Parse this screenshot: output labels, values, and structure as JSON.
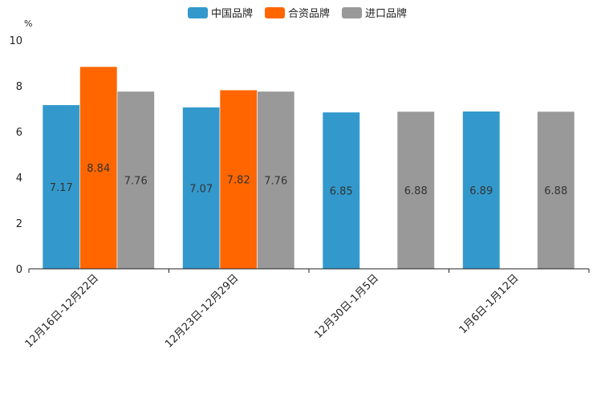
{
  "chart_data": {
    "type": "bar",
    "title": "",
    "ylabel": "%",
    "xlabel": "",
    "ylim": [
      0,
      10
    ],
    "yticks": [
      0,
      2,
      4,
      6,
      8,
      10
    ],
    "categories": [
      "12月16日-12月22日",
      "12月23日-12月29日",
      "12月30日-1月5日",
      "1月6日-1月12日"
    ],
    "series": [
      {
        "name": "中国品牌",
        "color": "#3399cc",
        "values": [
          7.17,
          7.07,
          6.85,
          6.89
        ]
      },
      {
        "name": "合资品牌",
        "color": "#ff6600",
        "values": [
          8.84,
          7.82,
          null,
          null
        ]
      },
      {
        "name": "进口品牌",
        "color": "#999999",
        "values": [
          7.76,
          7.76,
          6.88,
          6.88
        ]
      }
    ],
    "legend_position": "top-center",
    "grid": false
  }
}
